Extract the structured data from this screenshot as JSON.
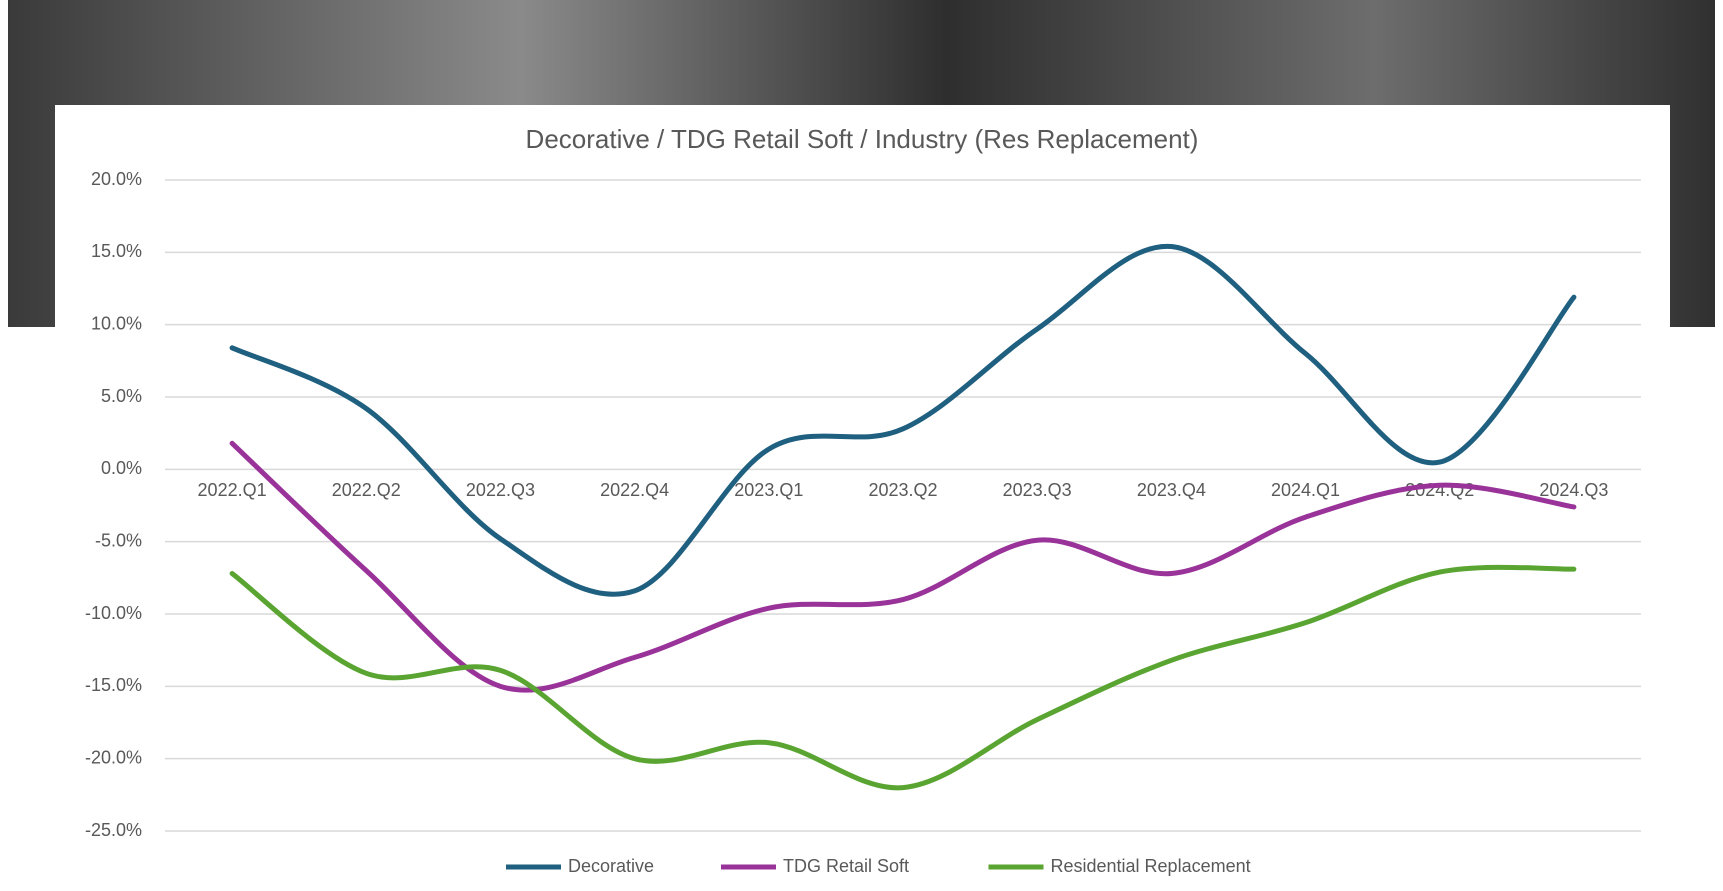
{
  "chart_data": {
    "type": "line",
    "title": "Decorative / TDG Retail Soft / Industry (Res Replacement)",
    "categories": [
      "2022.Q1",
      "2022.Q2",
      "2022.Q3",
      "2022.Q4",
      "2023.Q1",
      "2023.Q2",
      "2023.Q3",
      "2023.Q4",
      "2024.Q1",
      "2024.Q2",
      "2024.Q3"
    ],
    "series": [
      {
        "name": "Decorative",
        "color": "#1f5f7f",
        "values": [
          8.4,
          4.2,
          -4.8,
          -8.4,
          1.4,
          2.8,
          9.7,
          15.4,
          8.0,
          0.5,
          11.9
        ]
      },
      {
        "name": "TDG Retail Soft",
        "color": "#993399",
        "values": [
          1.8,
          -7.0,
          -15.0,
          -13.0,
          -9.6,
          -9.0,
          -4.9,
          -7.2,
          -3.3,
          -1.1,
          -2.6
        ]
      },
      {
        "name": "Residential Replacement",
        "color": "#5aa532",
        "values": [
          -7.2,
          -14.1,
          -13.9,
          -20.0,
          -18.9,
          -22.0,
          -17.3,
          -13.2,
          -10.6,
          -7.1,
          -6.9
        ]
      }
    ],
    "ylim": [
      -25,
      20
    ],
    "yticks": [
      {
        "value": -25,
        "label": "-25.0%"
      },
      {
        "value": -20,
        "label": "-20.0%"
      },
      {
        "value": -15,
        "label": "-15.0%"
      },
      {
        "value": -10,
        "label": "-10.0%"
      },
      {
        "value": -5,
        "label": "-5.0%"
      },
      {
        "value": 0,
        "label": "0.0%"
      },
      {
        "value": 5,
        "label": "5.0%"
      },
      {
        "value": 10,
        "label": "10.0%"
      },
      {
        "value": 15,
        "label": "15.0%"
      },
      {
        "value": 20,
        "label": "20.0%"
      }
    ],
    "grid": true,
    "smooth": true,
    "legend": "bottom"
  }
}
